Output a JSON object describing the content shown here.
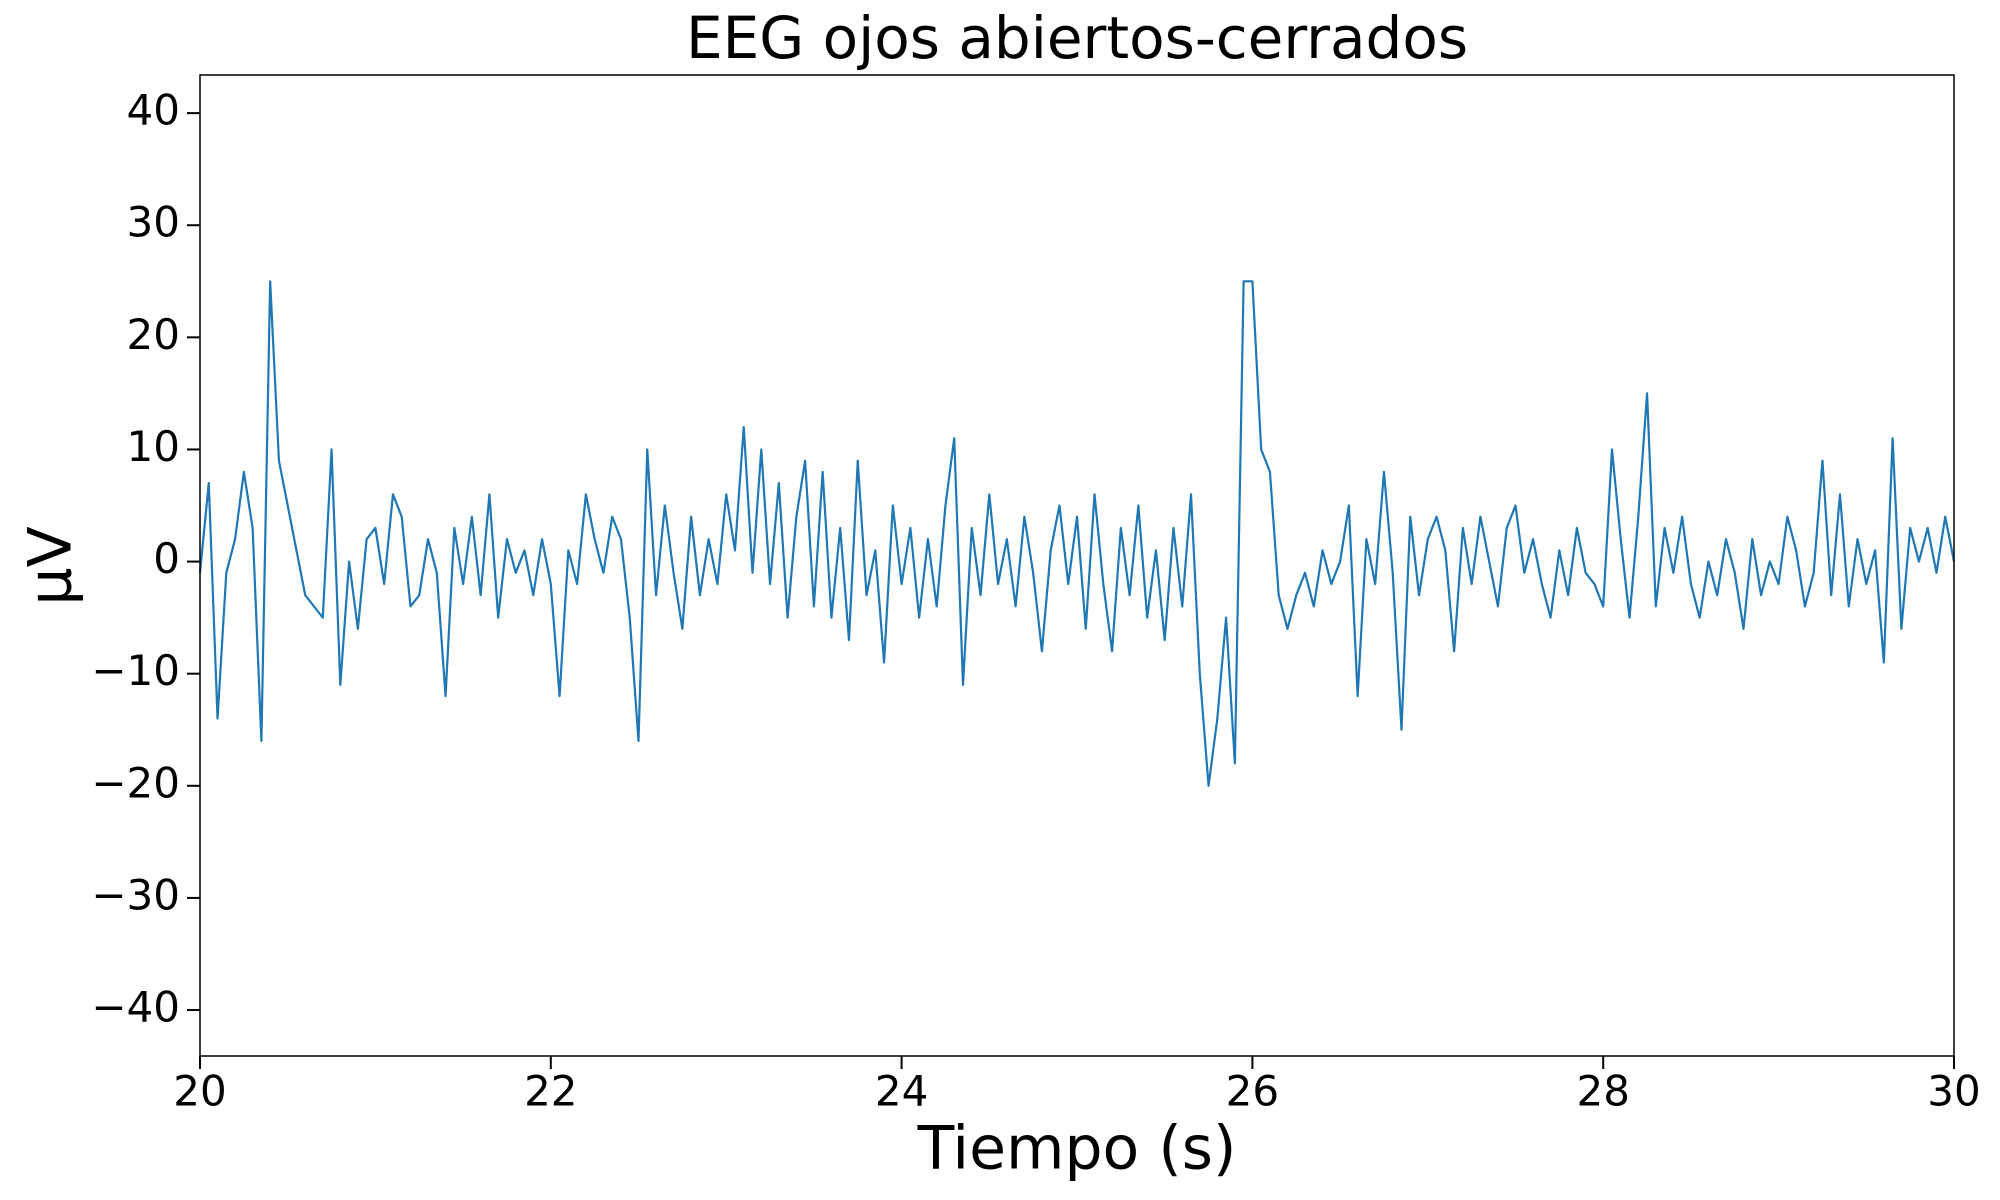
{
  "chart_data": {
    "type": "line",
    "title": "EEG ojos abiertos-cerrados",
    "x_label": "Tiempo (s)",
    "y_label": "µV",
    "color": "#1f77b4",
    "grid": false,
    "xlim": [
      20,
      30
    ],
    "xticks": [
      20,
      22,
      24,
      26,
      28,
      30
    ],
    "ylim": [
      -44.1,
      43.4
    ],
    "yticks": [
      {
        "value": -40,
        "label": "−40"
      },
      {
        "value": -30,
        "label": "−30"
      },
      {
        "value": -20,
        "label": "−20"
      },
      {
        "value": -10,
        "label": "−10"
      },
      0,
      10,
      20,
      30,
      40
    ],
    "x": [
      20.0,
      20.05,
      20.1,
      20.15,
      20.2,
      20.25,
      20.3,
      20.35,
      20.4,
      20.45,
      20.5,
      20.55,
      20.6,
      20.65,
      20.7,
      20.75,
      20.8,
      20.85,
      20.9,
      20.95,
      21.0,
      21.05,
      21.1,
      21.15,
      21.2,
      21.25,
      21.3,
      21.35,
      21.4,
      21.45,
      21.5,
      21.55,
      21.6,
      21.65,
      21.7,
      21.75,
      21.8,
      21.85,
      21.9,
      21.95,
      22.0,
      22.05,
      22.1,
      22.15,
      22.2,
      22.25,
      22.3,
      22.35,
      22.4,
      22.45,
      22.5,
      22.55,
      22.6,
      22.65,
      22.7,
      22.75,
      22.8,
      22.85,
      22.9,
      22.95,
      23.0,
      23.05,
      23.1,
      23.15,
      23.2,
      23.25,
      23.3,
      23.35,
      23.4,
      23.45,
      23.5,
      23.55,
      23.6,
      23.65,
      23.7,
      23.75,
      23.8,
      23.85,
      23.9,
      23.95,
      24.0,
      24.05,
      24.1,
      24.15,
      24.2,
      24.25,
      24.3,
      24.35,
      24.4,
      24.45,
      24.5,
      24.55,
      24.6,
      24.65,
      24.7,
      24.75,
      24.8,
      24.85,
      24.9,
      24.95,
      25.0,
      25.05,
      25.1,
      25.15,
      25.2,
      25.25,
      25.3,
      25.35,
      25.4,
      25.45,
      25.5,
      25.55,
      25.6,
      25.65,
      25.7,
      25.75,
      25.8,
      25.85,
      25.9,
      25.95,
      26.0,
      26.05,
      26.1,
      26.15,
      26.2,
      26.25,
      26.3,
      26.35,
      26.4,
      26.45,
      26.5,
      26.55,
      26.6,
      26.65,
      26.7,
      26.75,
      26.8,
      26.85,
      26.9,
      26.95,
      27.0,
      27.05,
      27.1,
      27.15,
      27.2,
      27.25,
      27.3,
      27.35,
      27.4,
      27.45,
      27.5,
      27.55,
      27.6,
      27.65,
      27.7,
      27.75,
      27.8,
      27.85,
      27.9,
      27.95,
      28.0,
      28.05,
      28.1,
      28.15,
      28.2,
      28.25,
      28.3,
      28.35,
      28.4,
      28.45,
      28.5,
      28.55,
      28.6,
      28.65,
      28.7,
      28.75,
      28.8,
      28.85,
      28.9,
      28.95,
      29.0,
      29.05,
      29.1,
      29.15,
      29.2,
      29.25,
      29.3,
      29.35,
      29.4,
      29.45,
      29.5,
      29.55,
      29.6,
      29.65,
      29.7,
      29.75,
      29.8,
      29.85,
      29.9,
      29.95,
      30.0
    ],
    "values": [
      -1,
      7,
      -14,
      -1,
      2,
      8,
      3,
      -16,
      25,
      9,
      5,
      1,
      -3,
      -4,
      -5,
      10,
      -11,
      0,
      -6,
      2,
      3,
      -2,
      6,
      4,
      -4,
      -3,
      2,
      -1,
      -12,
      3,
      -2,
      4,
      -3,
      6,
      -5,
      2,
      -1,
      1,
      -3,
      2,
      -2,
      -12,
      1,
      -2,
      6,
      2,
      -1,
      4,
      2,
      -5,
      -16,
      10,
      -3,
      5,
      -1,
      -6,
      4,
      -3,
      2,
      -2,
      6,
      1,
      12,
      -1,
      10,
      -2,
      7,
      -5,
      4,
      9,
      -4,
      8,
      -5,
      3,
      -7,
      9,
      -3,
      1,
      -9,
      5,
      -2,
      3,
      -5,
      2,
      -4,
      5,
      11,
      -11,
      3,
      -3,
      6,
      -2,
      2,
      -4,
      4,
      -1,
      -8,
      1,
      5,
      -2,
      4,
      -6,
      6,
      -2,
      -8,
      3,
      -3,
      5,
      -5,
      1,
      -7,
      3,
      -4,
      6,
      -10,
      -20,
      -14,
      -5,
      -18,
      25,
      25,
      10,
      8,
      -3,
      -6,
      -3,
      -1,
      -4,
      1,
      -2,
      0,
      5,
      -12,
      2,
      -2,
      8,
      -1,
      -15,
      4,
      -3,
      2,
      4,
      1,
      -8,
      3,
      -2,
      4,
      0,
      -4,
      3,
      5,
      -1,
      2,
      -2,
      -5,
      1,
      -3,
      3,
      -1,
      -2,
      -4,
      10,
      2,
      -5,
      4,
      15,
      -4,
      3,
      -1,
      4,
      -2,
      -5,
      0,
      -3,
      2,
      -1,
      -6,
      2,
      -3,
      0,
      -2,
      4,
      1,
      -4,
      -1,
      9,
      -3,
      6,
      -4,
      2,
      -2,
      1,
      -9,
      11,
      -6,
      3,
      0,
      3,
      -1,
      4,
      0
    ]
  }
}
